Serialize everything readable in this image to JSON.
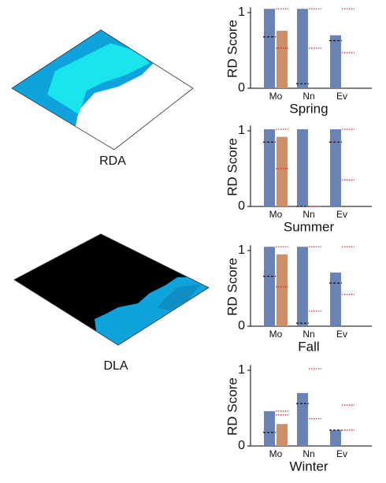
{
  "maps": [
    {
      "label": "RDA"
    },
    {
      "label": "DLA"
    }
  ],
  "chart_data": [
    {
      "type": "bar",
      "title": "Spring",
      "ylabel": "RD Score",
      "categories": [
        "Mo",
        "Nn",
        "Ev"
      ],
      "ylim": [
        0,
        1.07
      ],
      "yticks": [
        0,
        1
      ],
      "series": [
        {
          "kind": "bar",
          "slot": "left",
          "color": "#6a83b5",
          "values": [
            1.05,
            1.05,
            0.7
          ]
        },
        {
          "kind": "bar",
          "slot": "right",
          "color": "#cc8f6a",
          "values": [
            0.76,
            null,
            null
          ]
        },
        {
          "kind": "marker",
          "slot": "left",
          "style": "dashed",
          "color": "#111111",
          "values": [
            0.68,
            0.06,
            0.63
          ]
        },
        {
          "kind": "marker",
          "slot": "right",
          "style": "dotted",
          "color": "#e02020",
          "values": [
            1.05,
            1.05,
            1.05
          ]
        },
        {
          "kind": "marker",
          "slot": "right",
          "style": "dotted",
          "color": "#e02020",
          "values": [
            0.53,
            0.53,
            0.47
          ]
        }
      ]
    },
    {
      "type": "bar",
      "title": "Summer",
      "ylabel": "RD Score",
      "categories": [
        "Mo",
        "Nn",
        "Ev"
      ],
      "ylim": [
        0,
        1.07
      ],
      "yticks": [
        0,
        1
      ],
      "series": [
        {
          "kind": "bar",
          "slot": "left",
          "color": "#6a83b5",
          "values": [
            1.02,
            1.02,
            1.02
          ]
        },
        {
          "kind": "bar",
          "slot": "right",
          "color": "#cc8f6a",
          "values": [
            0.92,
            null,
            null
          ]
        },
        {
          "kind": "marker",
          "slot": "left",
          "style": "dashed",
          "color": "#111111",
          "values": [
            0.85,
            0,
            0.85
          ]
        },
        {
          "kind": "marker",
          "slot": "right",
          "style": "dotted",
          "color": "#e02020",
          "values": [
            1.02,
            null,
            1.02
          ]
        },
        {
          "kind": "marker",
          "slot": "right",
          "style": "dotted",
          "color": "#e02020",
          "values": [
            0.5,
            0,
            0.35
          ]
        }
      ]
    },
    {
      "type": "bar",
      "title": "Fall",
      "ylabel": "RD Score",
      "categories": [
        "Mo",
        "Nn",
        "Ev"
      ],
      "ylim": [
        0,
        1.07
      ],
      "yticks": [
        0,
        1
      ],
      "series": [
        {
          "kind": "bar",
          "slot": "left",
          "color": "#6a83b5",
          "values": [
            1.05,
            1.05,
            0.71
          ]
        },
        {
          "kind": "bar",
          "slot": "right",
          "color": "#cc8f6a",
          "values": [
            0.95,
            null,
            null
          ]
        },
        {
          "kind": "marker",
          "slot": "left",
          "style": "dashed",
          "color": "#111111",
          "values": [
            0.66,
            0.04,
            0.57
          ]
        },
        {
          "kind": "marker",
          "slot": "right",
          "style": "dotted",
          "color": "#e02020",
          "values": [
            1.05,
            1.05,
            1.05
          ]
        },
        {
          "kind": "marker",
          "slot": "right",
          "style": "dotted",
          "color": "#e02020",
          "values": [
            0.52,
            0.2,
            0.42
          ]
        }
      ]
    },
    {
      "type": "bar",
      "title": "Winter",
      "ylabel": "RD Score",
      "categories": [
        "Mo",
        "Nn",
        "Ev"
      ],
      "ylim": [
        0,
        1.07
      ],
      "yticks": [
        0,
        1
      ],
      "series": [
        {
          "kind": "bar",
          "slot": "left",
          "color": "#6a83b5",
          "values": [
            0.46,
            0.7,
            0.21
          ]
        },
        {
          "kind": "bar",
          "slot": "right",
          "color": "#cc8f6a",
          "values": [
            0.29,
            null,
            null
          ]
        },
        {
          "kind": "marker",
          "slot": "left",
          "style": "dashed",
          "color": "#111111",
          "values": [
            0.18,
            0.56,
            0.21
          ]
        },
        {
          "kind": "marker",
          "slot": "right",
          "style": "dotted",
          "color": "#e02020",
          "values": [
            0.46,
            1.02,
            0.54
          ]
        },
        {
          "kind": "marker",
          "slot": "right",
          "style": "dotted",
          "color": "#e02020",
          "values": [
            0.41,
            0.36,
            0.21
          ]
        }
      ]
    }
  ]
}
